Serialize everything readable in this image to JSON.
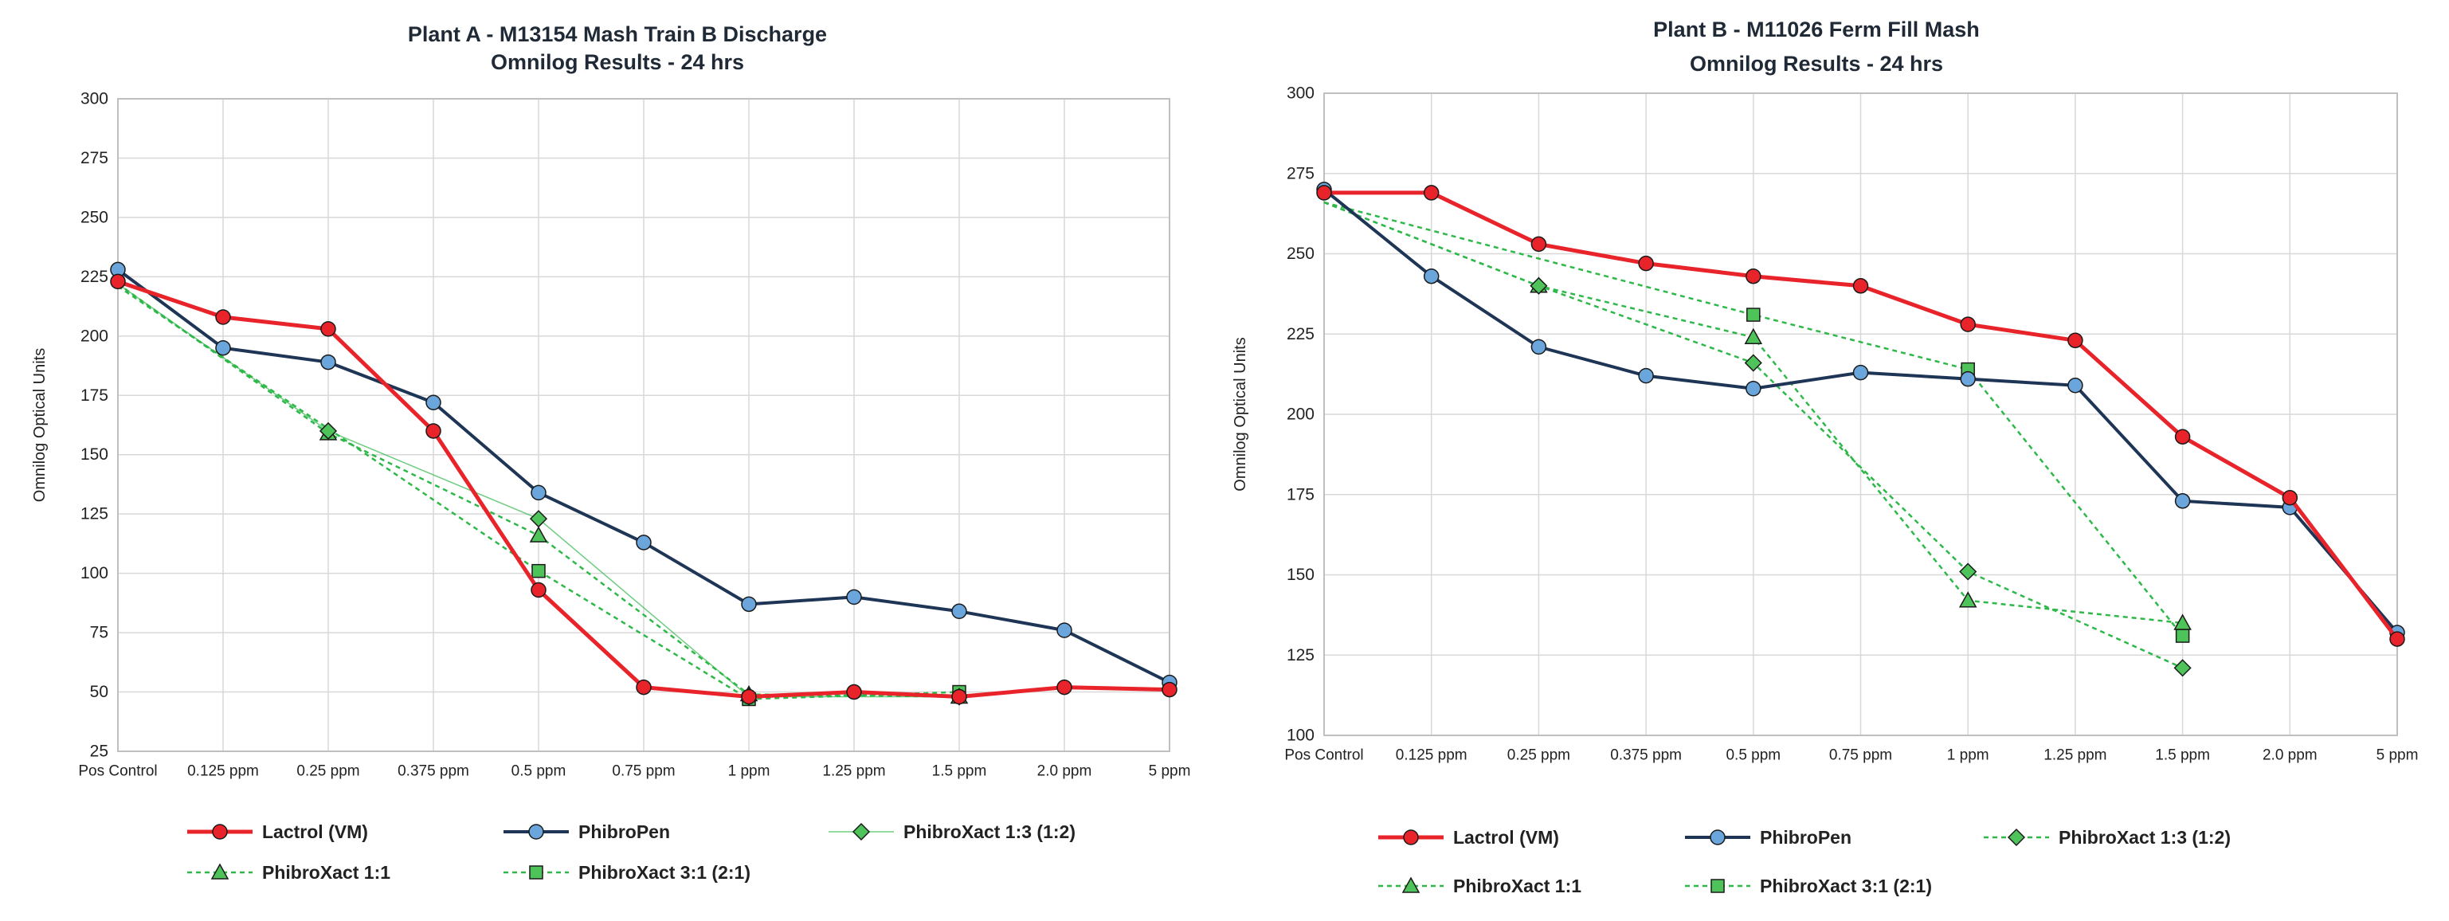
{
  "colors": {
    "lactrol": "#e8232a",
    "phibropen": "#1e3556",
    "phibropen_marker": "#6aa5dc",
    "phibroxact": "#2fb84a",
    "phibroxact_marker": "#4ec35a"
  },
  "chart_data": [
    {
      "type": "line",
      "title_line1": "Plant A - M13154  Mash Train B Discharge",
      "title_line2": "Omnilog Results - 24 hrs",
      "ylabel": "Omnilog Optical Units",
      "xlabel": "",
      "ylim": [
        25,
        300
      ],
      "yticks": [
        25,
        50,
        75,
        100,
        125,
        150,
        175,
        200,
        225,
        250,
        275,
        300
      ],
      "categories": [
        "Pos Control",
        "0.125 ppm",
        "0.25 ppm",
        "0.375 ppm",
        "0.5 ppm",
        "0.75 ppm",
        "1 ppm",
        "1.25 ppm",
        "1.5 ppm",
        "2.0 ppm",
        "5 ppm"
      ],
      "grid": true,
      "series": [
        {
          "name": "Lactrol (VM)",
          "style": "lactrol",
          "values": [
            223,
            208,
            203,
            160,
            93,
            52,
            48,
            50,
            48,
            52,
            51
          ]
        },
        {
          "name": "PhibroPen",
          "style": "phibropen",
          "values": [
            228,
            195,
            189,
            172,
            134,
            113,
            87,
            90,
            84,
            76,
            54
          ]
        },
        {
          "name": "PhibroXact 1:3 (1:2)",
          "style": "xact_thin_diamond",
          "values": [
            222,
            null,
            160,
            null,
            123,
            null,
            48,
            null,
            48,
            null,
            null
          ]
        },
        {
          "name": "PhibroXact 1:1",
          "style": "xact_dash_triangle",
          "values": [
            222,
            null,
            159,
            null,
            116,
            null,
            49,
            null,
            48,
            null,
            null
          ]
        },
        {
          "name": "PhibroXact 3:1 (2:1)",
          "style": "xact_dash_square",
          "values": [
            221,
            null,
            null,
            null,
            101,
            null,
            47,
            null,
            50,
            null,
            null
          ]
        }
      ]
    },
    {
      "type": "line",
      "title_line1": "Plant B  - M11026  Ferm Fill Mash",
      "title_line2": "Omnilog Results - 24 hrs",
      "ylabel": "Omnilog Optical Units",
      "xlabel": "",
      "ylim": [
        100,
        300
      ],
      "yticks": [
        100,
        125,
        150,
        175,
        200,
        225,
        250,
        275,
        300
      ],
      "categories": [
        "Pos Control",
        "0.125 ppm",
        "0.25 ppm",
        "0.375 ppm",
        "0.5 ppm",
        "0.75 ppm",
        "1 ppm",
        "1.25 ppm",
        "1.5 ppm",
        "2.0 ppm",
        "5 ppm"
      ],
      "grid": true,
      "series": [
        {
          "name": "Lactrol (VM)",
          "style": "lactrol",
          "values": [
            269,
            269,
            253,
            247,
            243,
            240,
            228,
            223,
            193,
            174,
            130
          ]
        },
        {
          "name": "PhibroPen",
          "style": "phibropen",
          "values": [
            270,
            243,
            221,
            212,
            208,
            213,
            211,
            209,
            173,
            171,
            132
          ]
        },
        {
          "name": "PhibroXact 1:3 (1:2)",
          "style": "xact_dash_diamond",
          "values": [
            266,
            null,
            240,
            null,
            216,
            null,
            151,
            null,
            121,
            null,
            null
          ]
        },
        {
          "name": "PhibroXact 1:1",
          "style": "xact_dash_triangle",
          "values": [
            266,
            null,
            240,
            null,
            224,
            null,
            142,
            null,
            135,
            null,
            null
          ]
        },
        {
          "name": "PhibroXact 3:1 (2:1)",
          "style": "xact_dash_square",
          "values": [
            266,
            null,
            null,
            null,
            231,
            null,
            214,
            null,
            131,
            null,
            null
          ]
        }
      ]
    }
  ]
}
